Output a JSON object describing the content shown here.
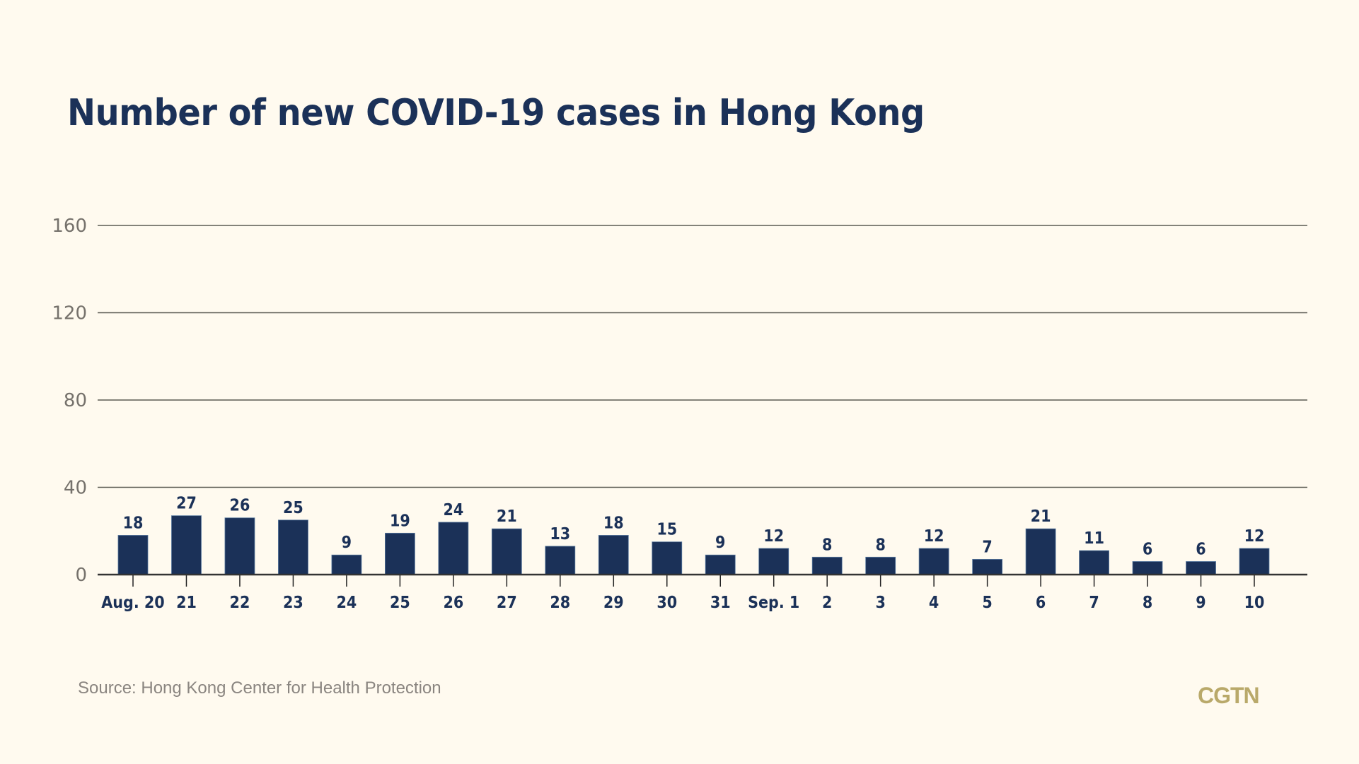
{
  "title": "Number of new COVID-19 cases in Hong Kong",
  "source": "Source: Hong Kong Center for Health Protection",
  "logo": "CGTN",
  "colors": {
    "bar": "#1b3158",
    "grid": "#5a5a52",
    "tick_label": "#75716b",
    "cat_label": "#1b3158",
    "background": "#fffaef",
    "logo": "#b9a96a"
  },
  "chart_data": {
    "type": "bar",
    "title": "Number of new COVID-19 cases in Hong Kong",
    "xlabel": "",
    "ylabel": "",
    "ylim": [
      0,
      160
    ],
    "yticks": [
      0,
      40,
      80,
      120,
      160
    ],
    "grid": true,
    "categories": [
      "Aug. 20",
      "21",
      "22",
      "23",
      "24",
      "25",
      "26",
      "27",
      "28",
      "29",
      "30",
      "31",
      "Sep. 1",
      "2",
      "3",
      "4",
      "5",
      "6",
      "7",
      "8",
      "9",
      "10"
    ],
    "values": [
      18,
      27,
      26,
      25,
      9,
      19,
      24,
      21,
      13,
      18,
      15,
      9,
      12,
      8,
      8,
      12,
      7,
      21,
      11,
      6,
      6,
      12
    ],
    "data_labels": true,
    "source": "Source: Hong Kong Center for Health Protection"
  }
}
